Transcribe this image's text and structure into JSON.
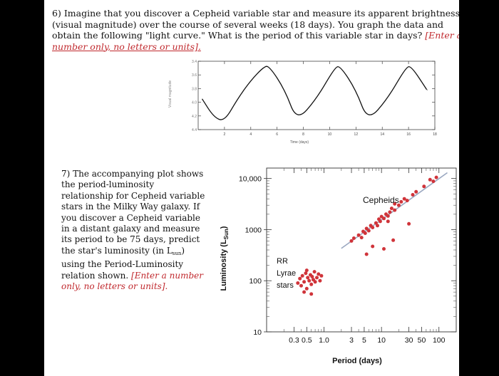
{
  "question6": {
    "number": "6)",
    "text_line1": "Imagine that you discover a Cepheid variable star and measure its apparent brightness",
    "text_line2": "(visual magnitude) over the course of several weeks (18 days).  You graph the data and",
    "text_line3_black": "obtain the following \"light curve.\"  What is the period of this variable star in days?",
    "text_line3_red": "[Enter a",
    "text_line4_red": "number only, no letters or units].",
    "chart_data": {
      "type": "line",
      "title": "",
      "xlabel": "Time (days)",
      "ylabel": "Visual magnitude",
      "x_ticks": [
        "2",
        "4",
        "6",
        "8",
        "10",
        "12",
        "14",
        "16",
        "18"
      ],
      "y_ticks": [
        "3.4",
        "3.6",
        "3.8",
        "4.0",
        "4.2",
        "4.4"
      ],
      "xlim": [
        0,
        18
      ],
      "ylim": [
        3.4,
        4.4
      ],
      "y_inverted": true,
      "x": [
        0.3,
        1.2,
        2.0,
        3.0,
        4.0,
        5.0,
        5.4,
        6.6,
        7.5,
        9.0,
        10.4,
        10.8,
        12.0,
        12.9,
        14.4,
        15.8,
        16.2,
        17.4
      ],
      "y": [
        3.95,
        4.22,
        4.28,
        3.95,
        3.68,
        3.48,
        3.47,
        3.82,
        4.28,
        3.95,
        3.49,
        3.47,
        3.82,
        4.28,
        3.95,
        3.49,
        3.47,
        3.82
      ]
    }
  },
  "question7": {
    "l1": "7) The accompanying plot shows",
    "l2": "the period-luminosity",
    "l3": "relationship for Cepheid variable",
    "l4": "stars in the Milky Way galaxy.  If",
    "l5": "you discover a Cepheid variable",
    "l6": "in a distant galaxy and measure",
    "l7": "its period to be 75 days, predict",
    "l8_pre": "the star's luminosity (in L",
    "l8_sub": "sun",
    "l8_post": ")",
    "l9": "using the Period-Luminosity",
    "l10_black": "relation shown.",
    "l10_red": "[Enter a number",
    "l11_red": "only, no letters or units].",
    "chart_data": {
      "type": "scatter",
      "title": "",
      "xlabel": "Period (days)",
      "ylabel": "Luminosity (L",
      "ylabel_sub": "Sun",
      "ylabel_end": ")",
      "x_scale": "log",
      "y_scale": "log",
      "x_ticks": [
        "0.3",
        "0.5",
        "1.0",
        "3",
        "5",
        "10",
        "30",
        "50",
        "100"
      ],
      "y_ticks": [
        "10",
        "100",
        "1000",
        "10,000"
      ],
      "xlim": [
        0.1,
        200
      ],
      "ylim": [
        10,
        16000
      ],
      "annotations": [
        "Cepheids",
        "RR",
        "Lyrae",
        "stars"
      ],
      "series": [
        {
          "name": "Cepheids",
          "color": "#d0343a",
          "points": [
            [
              3.0,
              600
            ],
            [
              3.3,
              680
            ],
            [
              4.0,
              780
            ],
            [
              4.5,
              700
            ],
            [
              4.8,
              920
            ],
            [
              5.2,
              850
            ],
            [
              5.5,
              1050
            ],
            [
              6.0,
              950
            ],
            [
              6.5,
              1200
            ],
            [
              7.0,
              1100
            ],
            [
              8.0,
              1350
            ],
            [
              8.5,
              1200
            ],
            [
              9.0,
              1600
            ],
            [
              9.5,
              1450
            ],
            [
              10.0,
              1800
            ],
            [
              11.0,
              1650
            ],
            [
              12.0,
              2000
            ],
            [
              13.0,
              1850
            ],
            [
              14.0,
              2200
            ],
            [
              15.0,
              2600
            ],
            [
              17.0,
              2400
            ],
            [
              20.0,
              3000
            ],
            [
              22.0,
              3500
            ],
            [
              25.0,
              4000
            ],
            [
              28.0,
              3700
            ],
            [
              35.0,
              4800
            ],
            [
              40.0,
              5500
            ],
            [
              55.0,
              7000
            ],
            [
              70.0,
              9500
            ],
            [
              80.0,
              8800
            ],
            [
              90.0,
              10500
            ],
            [
              5.5,
              330
            ],
            [
              7.0,
              470
            ],
            [
              11.0,
              420
            ],
            [
              16.0,
              620
            ],
            [
              13.0,
              1450
            ],
            [
              30.0,
              1300
            ],
            [
              17.0,
              3200
            ]
          ]
        },
        {
          "name": "RR Lyrae stars",
          "color": "#d0343a",
          "points": [
            [
              0.35,
              90
            ],
            [
              0.38,
              110
            ],
            [
              0.4,
              80
            ],
            [
              0.42,
              125
            ],
            [
              0.45,
              95
            ],
            [
              0.48,
              140
            ],
            [
              0.5,
              70
            ],
            [
              0.52,
              115
            ],
            [
              0.55,
              100
            ],
            [
              0.58,
              130
            ],
            [
              0.6,
              85
            ],
            [
              0.62,
              120
            ],
            [
              0.65,
              105
            ],
            [
              0.68,
              150
            ],
            [
              0.7,
              95
            ],
            [
              0.75,
              115
            ],
            [
              0.8,
              135
            ],
            [
              0.85,
              100
            ],
            [
              0.9,
              125
            ],
            [
              0.5,
              160
            ],
            [
              0.45,
              60
            ],
            [
              0.6,
              55
            ]
          ]
        }
      ]
    }
  }
}
